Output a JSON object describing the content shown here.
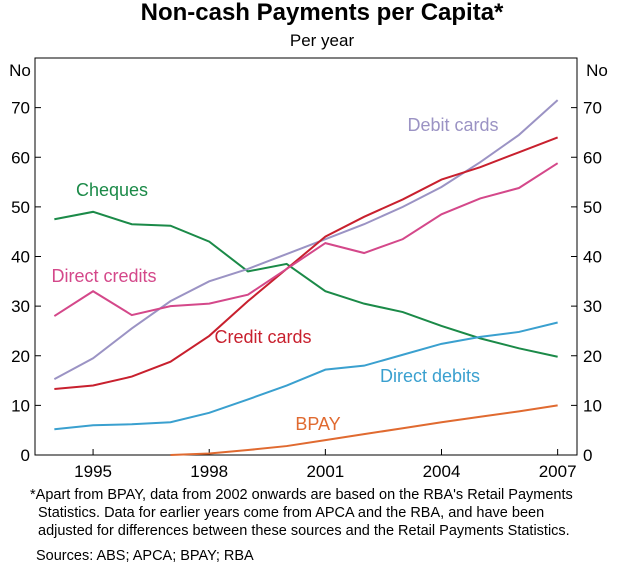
{
  "chart_data": {
    "type": "line",
    "title": "Non-cash Payments per Capita*",
    "subtitle": "Per year",
    "ylabel": "No",
    "x": [
      1994,
      1995,
      1996,
      1997,
      1998,
      1999,
      2000,
      2001,
      2002,
      2003,
      2004,
      2005,
      2006,
      2007
    ],
    "xlim": [
      1993.5,
      2007.5
    ],
    "xticks": [
      1995,
      1998,
      2001,
      2004,
      2007
    ],
    "ylim": [
      0,
      80
    ],
    "yticks": [
      0,
      10,
      20,
      30,
      40,
      50,
      60,
      70
    ],
    "series": [
      {
        "name": "Cheques",
        "color": "#1b8a48",
        "values": [
          47.5,
          49,
          46.5,
          46.2,
          43,
          37,
          38.5,
          33,
          30.5,
          28.8,
          26,
          23.5,
          21.5,
          19.8
        ]
      },
      {
        "name": "Debit cards",
        "color": "#9b93c4",
        "values": [
          15.3,
          19.5,
          25.5,
          31,
          35,
          37.5,
          40.5,
          43.5,
          46.5,
          50,
          54,
          59,
          64.5,
          71.5
        ]
      },
      {
        "name": "Credit cards",
        "color": "#c8202e",
        "values": [
          13.3,
          14,
          15.8,
          18.8,
          24,
          31,
          37.5,
          44,
          48,
          51.5,
          55.5,
          58,
          61,
          64
        ]
      },
      {
        "name": "Direct credits",
        "color": "#d4488a",
        "values": [
          28,
          33,
          28.2,
          30,
          30.5,
          32.3,
          37.5,
          42.7,
          40.7,
          43.5,
          48.5,
          51.7,
          53.8,
          58.8
        ]
      },
      {
        "name": "Direct debits",
        "color": "#3aa0cf",
        "values": [
          5.2,
          6,
          6.2,
          6.6,
          8.5,
          11.2,
          14,
          17.2,
          18,
          20.2,
          22.4,
          23.8,
          24.8,
          26.7
        ]
      },
      {
        "name": "BPAY",
        "color": "#e06a30",
        "values": [
          null,
          null,
          null,
          0,
          0.3,
          1,
          1.8,
          3,
          4.2,
          5.4,
          6.6,
          7.7,
          8.8,
          10
        ]
      }
    ],
    "footnote": [
      "*Apart from BPAY, data from 2002 onwards are based on the RBA's Retail Payments",
      "Statistics. Data for earlier years come from APCA and the RBA, and have been",
      "adjusted for differences between these sources and the Retail Payments Statistics."
    ],
    "sources": "Sources: ABS; APCA; BPAY; RBA"
  }
}
